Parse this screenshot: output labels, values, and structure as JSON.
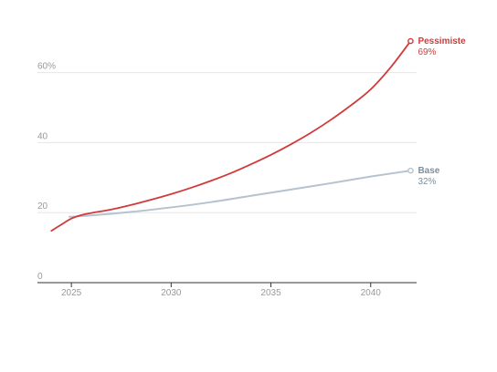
{
  "chart_data": {
    "type": "line",
    "x_range": [
      2023.3,
      2042.3
    ],
    "ylim": [
      0,
      75
    ],
    "grid": "horizontal",
    "y_ticks": [
      {
        "value": 0,
        "label": "0"
      },
      {
        "value": 20,
        "label": "20"
      },
      {
        "value": 40,
        "label": "40"
      },
      {
        "value": 60,
        "label": "60%"
      }
    ],
    "x_ticks": [
      {
        "value": 2025,
        "label": "2025"
      },
      {
        "value": 2030,
        "label": "2030"
      },
      {
        "value": 2035,
        "label": "2035"
      },
      {
        "value": 2040,
        "label": "2040"
      }
    ],
    "series": [
      {
        "name": "Base",
        "end_label": "32%",
        "color": "#b4c3cf",
        "points": [
          [
            2024.9,
            18.8
          ],
          [
            2026,
            19.2
          ],
          [
            2028,
            20.2
          ],
          [
            2030,
            21.5
          ],
          [
            2032,
            23.0
          ],
          [
            2034,
            24.8
          ],
          [
            2036,
            26.6
          ],
          [
            2038,
            28.4
          ],
          [
            2040,
            30.3
          ],
          [
            2042,
            32.0
          ]
        ]
      },
      {
        "name": "Pessimiste",
        "end_label": "69%",
        "color": "#d03a3a",
        "points": [
          [
            2024,
            14.8
          ],
          [
            2024.5,
            16.6
          ],
          [
            2025,
            18.3
          ],
          [
            2025.5,
            19.3
          ],
          [
            2026,
            19.9
          ],
          [
            2027,
            20.9
          ],
          [
            2028,
            22.2
          ],
          [
            2029,
            23.7
          ],
          [
            2030,
            25.3
          ],
          [
            2031,
            27.1
          ],
          [
            2032,
            29.1
          ],
          [
            2033,
            31.3
          ],
          [
            2034,
            33.8
          ],
          [
            2035,
            36.5
          ],
          [
            2036,
            39.5
          ],
          [
            2037,
            42.8
          ],
          [
            2038,
            46.5
          ],
          [
            2039,
            50.6
          ],
          [
            2040,
            55.2
          ],
          [
            2041,
            61.5
          ],
          [
            2042,
            69.0
          ]
        ]
      }
    ]
  }
}
